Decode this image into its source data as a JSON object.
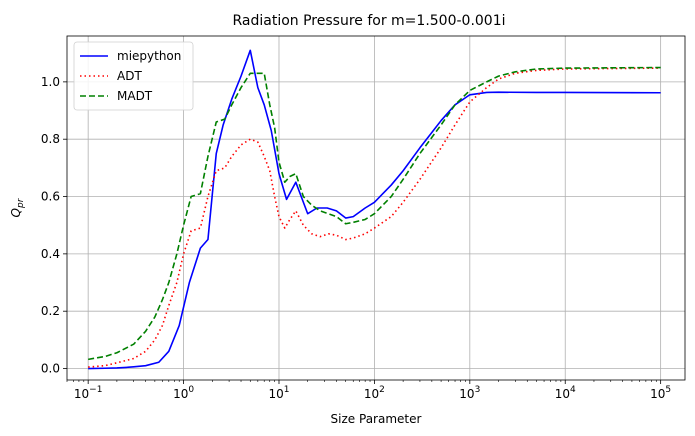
{
  "chart_data": {
    "type": "line",
    "title": "Radiation Pressure for m=1.500-0.001i",
    "xlabel": "Size Parameter",
    "ylabel": "Q_pr",
    "xscale": "log",
    "xlim": [
      0.06,
      180000
    ],
    "ylim": [
      -0.04,
      1.16
    ],
    "grid": true,
    "legend_position": "top-left",
    "xticks": [
      {
        "value": 0.1,
        "base": "10",
        "exp": "−1"
      },
      {
        "value": 1,
        "base": "10",
        "exp": "0"
      },
      {
        "value": 10,
        "base": "10",
        "exp": "1"
      },
      {
        "value": 100,
        "base": "10",
        "exp": "2"
      },
      {
        "value": 1000,
        "base": "10",
        "exp": "3"
      },
      {
        "value": 10000,
        "base": "10",
        "exp": "4"
      },
      {
        "value": 100000,
        "base": "10",
        "exp": "5"
      }
    ],
    "yticks": [
      {
        "value": 0.0,
        "label": "0.0"
      },
      {
        "value": 0.2,
        "label": "0.2"
      },
      {
        "value": 0.4,
        "label": "0.4"
      },
      {
        "value": 0.6,
        "label": "0.6"
      },
      {
        "value": 0.8,
        "label": "0.8"
      },
      {
        "value": 1.0,
        "label": "1.0"
      }
    ],
    "series": [
      {
        "name": "miepython",
        "color": "#0000ff",
        "dash": "solid",
        "points": [
          [
            0.1,
            0.0
          ],
          [
            0.15,
            0.001
          ],
          [
            0.2,
            0.002
          ],
          [
            0.25,
            0.004
          ],
          [
            0.3,
            0.006
          ],
          [
            0.4,
            0.01
          ],
          [
            0.55,
            0.022
          ],
          [
            0.7,
            0.06
          ],
          [
            0.9,
            0.15
          ],
          [
            1.15,
            0.3
          ],
          [
            1.5,
            0.42
          ],
          [
            1.8,
            0.45
          ],
          [
            2.2,
            0.75
          ],
          [
            2.6,
            0.85
          ],
          [
            3.2,
            0.94
          ],
          [
            4.0,
            1.02
          ],
          [
            5.0,
            1.11
          ],
          [
            6.0,
            0.98
          ],
          [
            7.0,
            0.92
          ],
          [
            8.3,
            0.83
          ],
          [
            10.0,
            0.68
          ],
          [
            12.0,
            0.59
          ],
          [
            15.0,
            0.65
          ],
          [
            20.0,
            0.54
          ],
          [
            25.0,
            0.56
          ],
          [
            32.0,
            0.56
          ],
          [
            40.0,
            0.55
          ],
          [
            50.0,
            0.525
          ],
          [
            60.0,
            0.53
          ],
          [
            80.0,
            0.56
          ],
          [
            100.0,
            0.58
          ],
          [
            150.0,
            0.64
          ],
          [
            200.0,
            0.69
          ],
          [
            300.0,
            0.77
          ],
          [
            500.0,
            0.865
          ],
          [
            700.0,
            0.92
          ],
          [
            1000.0,
            0.955
          ],
          [
            1500.0,
            0.963
          ],
          [
            2000.0,
            0.964
          ],
          [
            5000.0,
            0.963
          ],
          [
            10000.0,
            0.963
          ],
          [
            100000.0,
            0.962
          ]
        ]
      },
      {
        "name": "ADT",
        "color": "#ff0000",
        "dash": "dotted",
        "points": [
          [
            0.1,
            0.005
          ],
          [
            0.15,
            0.01
          ],
          [
            0.2,
            0.02
          ],
          [
            0.3,
            0.035
          ],
          [
            0.4,
            0.06
          ],
          [
            0.5,
            0.1
          ],
          [
            0.6,
            0.15
          ],
          [
            0.7,
            0.22
          ],
          [
            0.85,
            0.3
          ],
          [
            1.0,
            0.4
          ],
          [
            1.2,
            0.48
          ],
          [
            1.5,
            0.49
          ],
          [
            1.8,
            0.6
          ],
          [
            2.2,
            0.69
          ],
          [
            2.7,
            0.7
          ],
          [
            3.2,
            0.74
          ],
          [
            4.0,
            0.78
          ],
          [
            5.0,
            0.8
          ],
          [
            6.0,
            0.79
          ],
          [
            7.0,
            0.74
          ],
          [
            8.0,
            0.69
          ],
          [
            9.0,
            0.6
          ],
          [
            10.0,
            0.53
          ],
          [
            11.5,
            0.49
          ],
          [
            13.0,
            0.52
          ],
          [
            15.0,
            0.55
          ],
          [
            18.0,
            0.5
          ],
          [
            22.0,
            0.47
          ],
          [
            27.0,
            0.46
          ],
          [
            33.0,
            0.47
          ],
          [
            40.0,
            0.465
          ],
          [
            50.0,
            0.45
          ],
          [
            60.0,
            0.455
          ],
          [
            80.0,
            0.47
          ],
          [
            100.0,
            0.49
          ],
          [
            150.0,
            0.53
          ],
          [
            200.0,
            0.58
          ],
          [
            300.0,
            0.66
          ],
          [
            500.0,
            0.77
          ],
          [
            700.0,
            0.85
          ],
          [
            1000.0,
            0.93
          ],
          [
            1500.0,
            0.98
          ],
          [
            2000.0,
            1.01
          ],
          [
            3000.0,
            1.03
          ],
          [
            5000.0,
            1.04
          ],
          [
            10000.0,
            1.045
          ],
          [
            100000.0,
            1.048
          ]
        ]
      },
      {
        "name": "MADT",
        "color": "#008000",
        "dash": "dashed",
        "points": [
          [
            0.1,
            0.032
          ],
          [
            0.15,
            0.042
          ],
          [
            0.2,
            0.055
          ],
          [
            0.3,
            0.085
          ],
          [
            0.4,
            0.13
          ],
          [
            0.5,
            0.18
          ],
          [
            0.6,
            0.24
          ],
          [
            0.7,
            0.3
          ],
          [
            0.85,
            0.4
          ],
          [
            1.0,
            0.5
          ],
          [
            1.2,
            0.6
          ],
          [
            1.5,
            0.61
          ],
          [
            1.8,
            0.74
          ],
          [
            2.2,
            0.86
          ],
          [
            2.7,
            0.87
          ],
          [
            3.2,
            0.92
          ],
          [
            4.0,
            0.98
          ],
          [
            5.0,
            1.03
          ],
          [
            6.0,
            1.03
          ],
          [
            7.0,
            1.03
          ],
          [
            8.0,
            0.92
          ],
          [
            9.0,
            0.84
          ],
          [
            10.0,
            0.72
          ],
          [
            11.5,
            0.65
          ],
          [
            13.0,
            0.67
          ],
          [
            15.0,
            0.68
          ],
          [
            18.0,
            0.6
          ],
          [
            22.0,
            0.57
          ],
          [
            27.0,
            0.55
          ],
          [
            33.0,
            0.54
          ],
          [
            40.0,
            0.53
          ],
          [
            50.0,
            0.505
          ],
          [
            60.0,
            0.51
          ],
          [
            80.0,
            0.52
          ],
          [
            100.0,
            0.54
          ],
          [
            150.0,
            0.6
          ],
          [
            200.0,
            0.66
          ],
          [
            300.0,
            0.75
          ],
          [
            500.0,
            0.85
          ],
          [
            700.0,
            0.92
          ],
          [
            1000.0,
            0.97
          ],
          [
            1500.0,
            1.0
          ],
          [
            2000.0,
            1.02
          ],
          [
            3000.0,
            1.035
          ],
          [
            5000.0,
            1.045
          ],
          [
            10000.0,
            1.048
          ],
          [
            100000.0,
            1.05
          ]
        ]
      }
    ]
  }
}
